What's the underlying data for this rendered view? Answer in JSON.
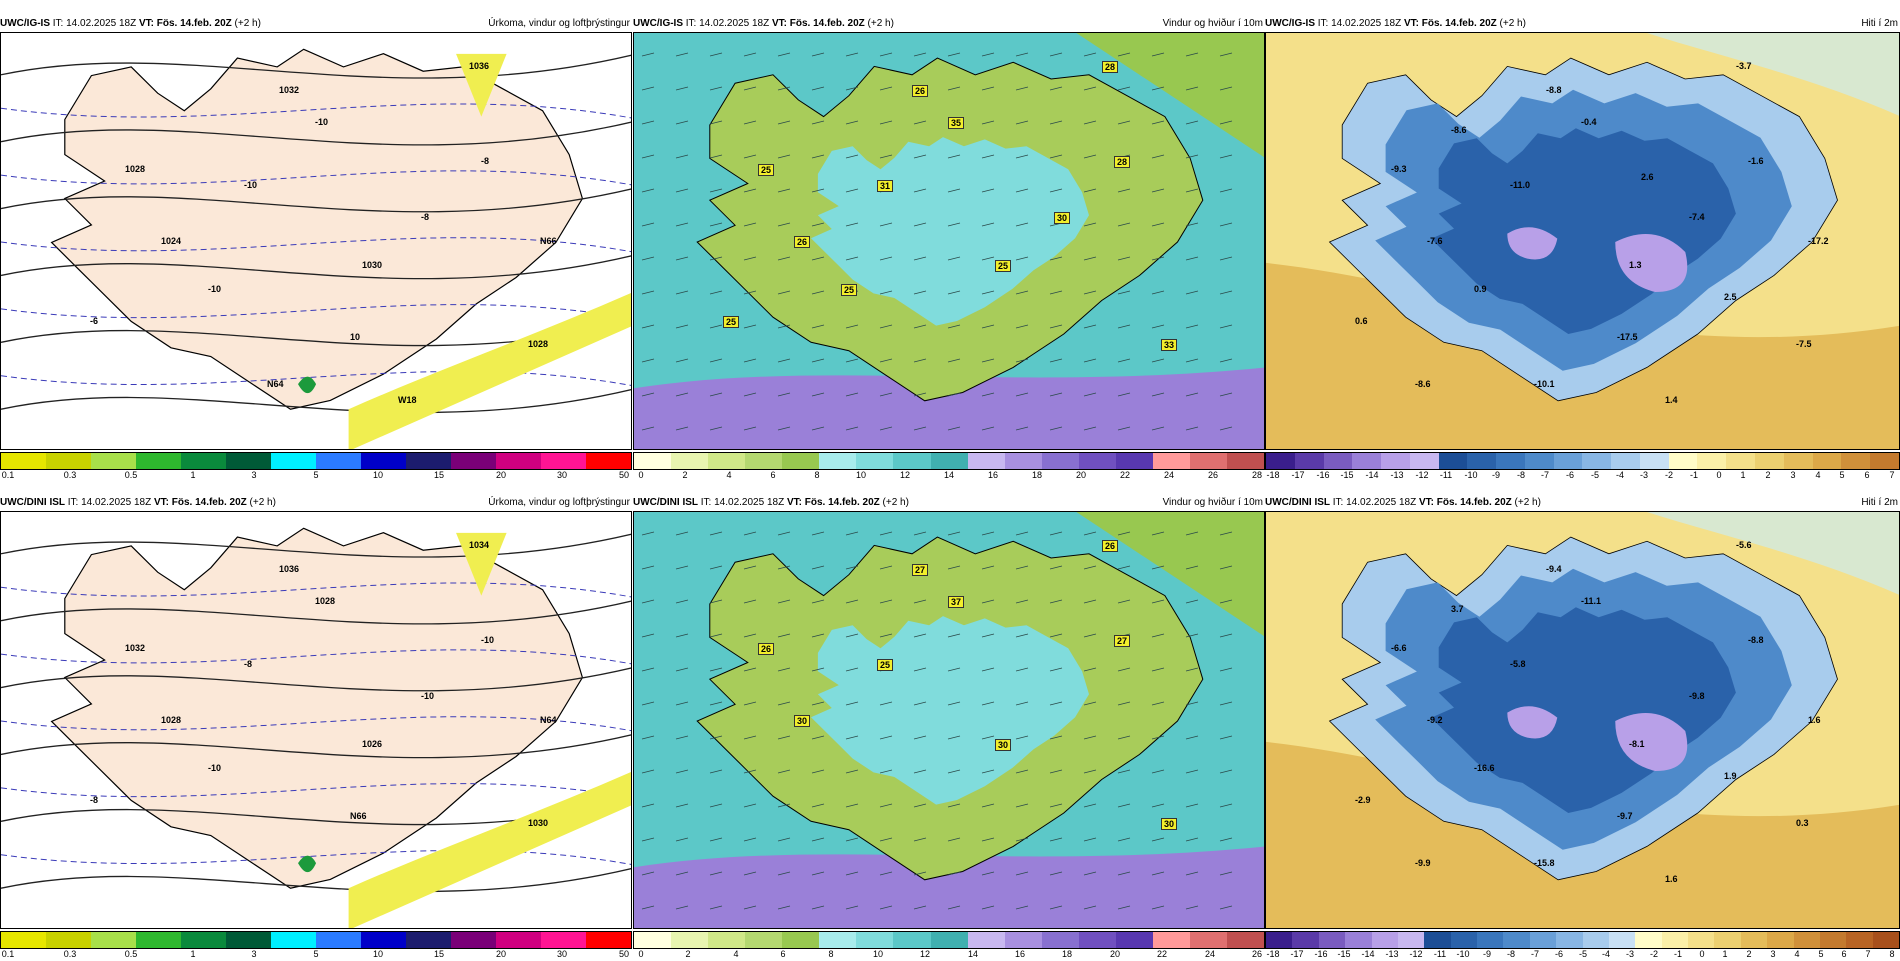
{
  "rows": [
    {
      "model": "UWC/IG-IS",
      "it": "IT: 14.02.2025 18Z",
      "vt_label": "VT:",
      "vt": "Fös. 14.feb. 20Z",
      "lead": "(+2 h)",
      "panels": [
        {
          "title": "Úrkoma, vindur og loftþrýstingur",
          "map_labels": [
            "1036",
            "1032",
            "1028",
            "1024",
            "1030",
            "1028",
            "-10",
            "-8",
            "-10",
            "-8",
            "-6",
            "-10",
            "10",
            "N66",
            "N64",
            "W18"
          ],
          "colorbar": {
            "colors": [
              "#e6e600",
              "#c8d200",
              "#a8e04a",
              "#2eb82e",
              "#0a8a3c",
              "#005a37",
              "#00f0ff",
              "#2b7bff",
              "#0000c8",
              "#1c1c6e",
              "#7a0078",
              "#d00080",
              "#ff1493",
              "#ff0000"
            ],
            "ticks": [
              "0.1",
              "0.3",
              "0.5",
              "1",
              "3",
              "5",
              "10",
              "15",
              "20",
              "30",
              "50"
            ]
          }
        },
        {
          "title": "Vindur og hviður í 10m",
          "map_labels": [
            "28",
            "26",
            "25",
            "26",
            "25",
            "33",
            "35",
            "28",
            "31",
            "30",
            "25",
            "25"
          ],
          "colorbar": {
            "colors": [
              "#ffffe0",
              "#e8f5b0",
              "#d0e888",
              "#b4d870",
              "#98c850",
              "#a8ecec",
              "#80dcdc",
              "#5cc8c8",
              "#40b0b0",
              "#c8b8f0",
              "#a890e0",
              "#8870d0",
              "#7050c0",
              "#5838b0",
              "#ff9a9a",
              "#e07070",
              "#c05050"
            ],
            "ticks": [
              "0",
              "2",
              "4",
              "6",
              "8",
              "10",
              "12",
              "14",
              "16",
              "18",
              "20",
              "22",
              "24",
              "26",
              "28"
            ]
          }
        },
        {
          "title": "Hiti í 2m",
          "map_labels": [
            "-3.7",
            "-8.8",
            "-9.3",
            "-7.6",
            "1.3",
            "-7.5",
            "-0.4",
            "-1.6",
            "-11.0",
            "-7.4",
            "0.6",
            "0.9",
            "-17.5",
            "-17.2",
            "-10.1",
            "1.4",
            "-8.6",
            "2.5",
            "-8.6",
            "2.6"
          ],
          "colorbar": {
            "colors": [
              "#3a1e8c",
              "#5a3aa8",
              "#7a5cc0",
              "#9a80d8",
              "#b8a0e8",
              "#c8b8f0",
              "#1c4e96",
              "#2a62aa",
              "#3a76bc",
              "#4e8aca",
              "#6aa0d8",
              "#88b6e4",
              "#a8cced",
              "#c8e0f4",
              "#fffcc8",
              "#fbf0a8",
              "#f4e08a",
              "#ecd070",
              "#e4bc5a",
              "#dca848",
              "#d0903a",
              "#c47a2e"
            ],
            "ticks": [
              "-18",
              "-17",
              "-16",
              "-15",
              "-14",
              "-13",
              "-12",
              "-11",
              "-10",
              "-9",
              "-8",
              "-7",
              "-6",
              "-5",
              "-4",
              "-3",
              "-2",
              "-1",
              "0",
              "1",
              "2",
              "3",
              "4",
              "5",
              "6",
              "7"
            ]
          }
        }
      ]
    },
    {
      "model": "UWC/DINI ISL",
      "it": "IT: 14.02.2025 18Z",
      "vt_label": "VT:",
      "vt": "Fös. 14.feb. 20Z",
      "lead": "(+2 h)",
      "panels": [
        {
          "title": "Úrkoma, vindur og loftþrýstingur",
          "map_labels": [
            "1034",
            "1036",
            "1032",
            "1028",
            "1026",
            "1030",
            "1028",
            "-10",
            "-8",
            "-10",
            "-8",
            "-10",
            "N66",
            "N64"
          ],
          "colorbar": {
            "colors": [
              "#e6e600",
              "#c8d200",
              "#a8e04a",
              "#2eb82e",
              "#0a8a3c",
              "#005a37",
              "#00f0ff",
              "#2b7bff",
              "#0000c8",
              "#1c1c6e",
              "#7a0078",
              "#d00080",
              "#ff1493",
              "#ff0000"
            ],
            "ticks": [
              "0.1",
              "0.3",
              "0.5",
              "1",
              "3",
              "5",
              "10",
              "15",
              "20",
              "30",
              "50"
            ]
          }
        },
        {
          "title": "Vindur og hviður í 10m",
          "map_labels": [
            "26",
            "27",
            "26",
            "30",
            "30",
            "30",
            "37",
            "27",
            "25"
          ],
          "colorbar": {
            "colors": [
              "#ffffe0",
              "#e8f5b0",
              "#d0e888",
              "#b4d870",
              "#98c850",
              "#a8ecec",
              "#80dcdc",
              "#5cc8c8",
              "#40b0b0",
              "#c8b8f0",
              "#a890e0",
              "#8870d0",
              "#7050c0",
              "#5838b0",
              "#ff9a9a",
              "#e07070",
              "#c05050"
            ],
            "ticks": [
              "0",
              "2",
              "4",
              "6",
              "8",
              "10",
              "12",
              "14",
              "16",
              "18",
              "20",
              "22",
              "24",
              "26"
            ]
          }
        },
        {
          "title": "Hiti í 2m",
          "map_labels": [
            "-5.6",
            "-9.4",
            "-6.6",
            "-9.2",
            "-8.1",
            "0.3",
            "-11.1",
            "-8.8",
            "-5.8",
            "-9.8",
            "-2.9",
            "-16.6",
            "-9.7",
            "1.6",
            "-15.8",
            "1.6",
            "-9.9",
            "1.9",
            "3.7"
          ],
          "colorbar": {
            "colors": [
              "#3a1e8c",
              "#5a3aa8",
              "#7a5cc0",
              "#9a80d8",
              "#b8a0e8",
              "#c8b8f0",
              "#1c4e96",
              "#2a62aa",
              "#3a76bc",
              "#4e8aca",
              "#6aa0d8",
              "#88b6e4",
              "#a8cced",
              "#c8e0f4",
              "#fffcc8",
              "#fbf0a8",
              "#f4e08a",
              "#ecd070",
              "#e4bc5a",
              "#dca848",
              "#d0903a",
              "#c47a2e",
              "#b86424",
              "#a8501c"
            ],
            "ticks": [
              "-18",
              "-17",
              "-16",
              "-15",
              "-14",
              "-13",
              "-12",
              "-11",
              "-10",
              "-9",
              "-8",
              "-7",
              "-6",
              "-5",
              "-4",
              "-3",
              "-2",
              "-1",
              "0",
              "1",
              "2",
              "3",
              "4",
              "5",
              "6",
              "7",
              "8"
            ]
          }
        }
      ]
    }
  ]
}
